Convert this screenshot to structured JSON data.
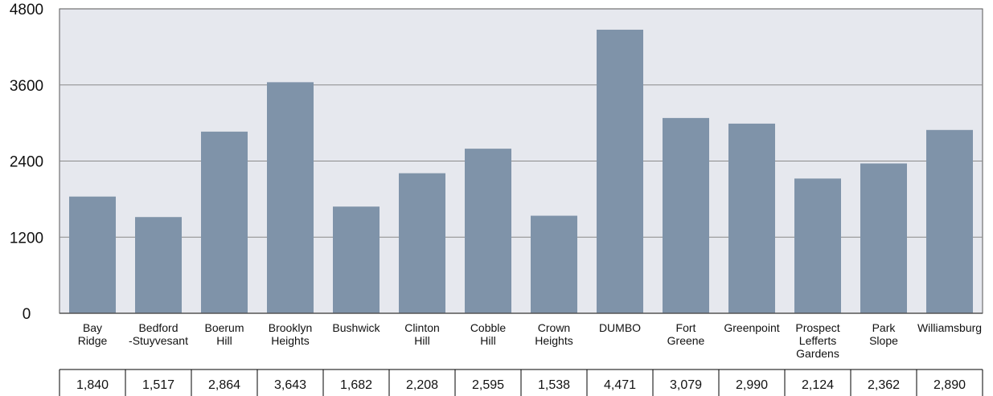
{
  "chart_data": {
    "type": "bar",
    "categories": [
      [
        "Bay",
        "Ridge"
      ],
      [
        "Bedford",
        "-Stuyvesant"
      ],
      [
        "Boerum",
        "Hill"
      ],
      [
        "Brooklyn",
        "Heights"
      ],
      [
        "Bushwick"
      ],
      [
        "Clinton",
        "Hill"
      ],
      [
        "Cobble",
        "Hill"
      ],
      [
        "Crown",
        "Heights"
      ],
      [
        "DUMBO"
      ],
      [
        "Fort",
        "Greene"
      ],
      [
        "Greenpoint"
      ],
      [
        "Prospect",
        "Lefferts",
        "Gardens"
      ],
      [
        "Park",
        "Slope"
      ],
      [
        "Williamsburg"
      ]
    ],
    "values": [
      1840,
      1517,
      2864,
      3643,
      1682,
      2208,
      2595,
      1538,
      4471,
      3079,
      2990,
      2124,
      2362,
      2890
    ],
    "table_values": [
      "1,840",
      "1,517",
      "2,864",
      "3,643",
      "1,682",
      "2,208",
      "2,595",
      "1,538",
      "4,471",
      "3,079",
      "2,990",
      "2,124",
      "2,362",
      "2,890"
    ],
    "yticks": [
      "0",
      "1200",
      "2400",
      "3600",
      "4800"
    ],
    "ylim": [
      0,
      4800
    ],
    "grid": true,
    "colors": {
      "bar": "#7f93a9",
      "plot_bg": "#e6e8ee",
      "grid": "#8a8a8a",
      "axis": "#555555"
    }
  }
}
